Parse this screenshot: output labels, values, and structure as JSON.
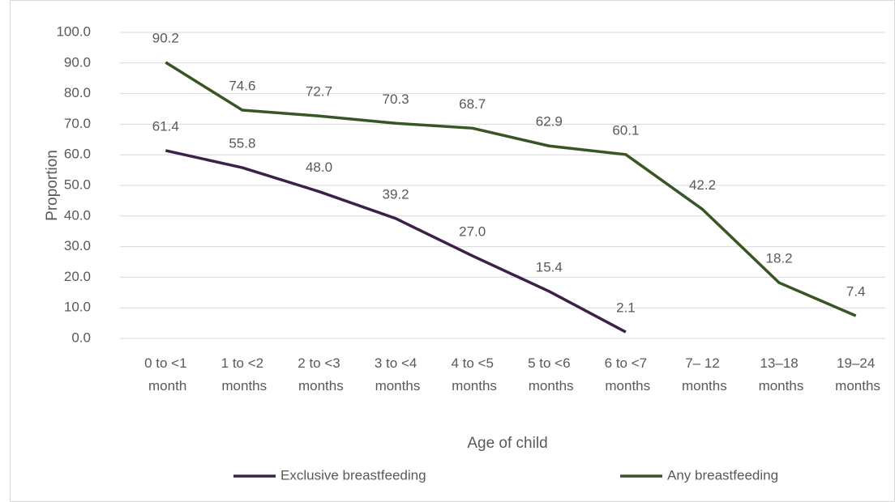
{
  "chart_data": {
    "type": "line",
    "xlabel": "Age of child",
    "ylabel": "Proportion",
    "categories": [
      "0 to <1\nmonth",
      "1 to <2\nmonths",
      "2 to <3\nmonths",
      "3 to <4\nmonths",
      "4 to <5\nmonths",
      "5 to <6\nmonths",
      "6 to <7\nmonths",
      "7– 12\nmonths",
      "13–18\nmonths",
      "19–24\nmonths"
    ],
    "series": [
      {
        "name": "Exclusive breastfeeding",
        "color": "#3e1f48",
        "values": [
          61.4,
          55.8,
          48.0,
          39.2,
          27.0,
          15.4,
          2.1,
          null,
          null,
          null
        ],
        "value_labels": [
          "61.4",
          "55.8",
          "48.0",
          "39.2",
          "27.0",
          "15.4",
          "2.1",
          null,
          null,
          null
        ]
      },
      {
        "name": "Any breastfeeding",
        "color": "#375623",
        "values": [
          90.2,
          74.6,
          72.7,
          70.3,
          68.7,
          62.9,
          60.1,
          42.2,
          18.2,
          7.4
        ],
        "value_labels": [
          "90.2",
          "74.6",
          "72.7",
          "70.3",
          "68.7",
          "62.9",
          "60.1",
          "42.2",
          "18.2",
          "7.4"
        ]
      }
    ],
    "ylim": [
      0,
      100
    ],
    "yticks": [
      {
        "value": 0,
        "label": "0.0"
      },
      {
        "value": 10,
        "label": "10.0"
      },
      {
        "value": 20,
        "label": "20.0"
      },
      {
        "value": 30,
        "label": "30.0"
      },
      {
        "value": 40,
        "label": "40.0"
      },
      {
        "value": 50,
        "label": "50.0"
      },
      {
        "value": 60,
        "label": "60.0"
      },
      {
        "value": 70,
        "label": "70.0"
      },
      {
        "value": 80,
        "label": "80.0"
      },
      {
        "value": 90,
        "label": "90.0"
      },
      {
        "value": 100,
        "label": "100.0"
      }
    ],
    "grid": true,
    "legend": "bottom"
  }
}
